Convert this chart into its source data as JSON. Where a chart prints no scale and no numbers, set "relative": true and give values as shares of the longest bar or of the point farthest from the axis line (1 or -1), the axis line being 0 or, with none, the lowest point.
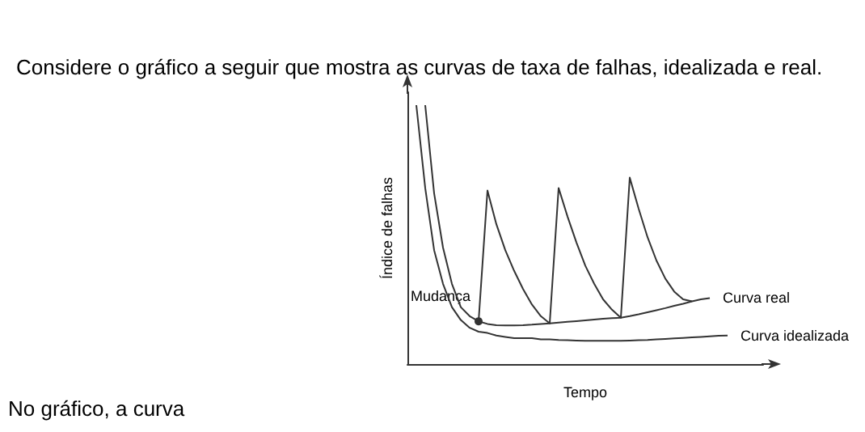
{
  "chart_data": {
    "type": "line",
    "relative": true,
    "title": "Considere o gráfico a seguir que mostra as curvas de taxa de falhas, idealizada e real.",
    "xlabel": "Tempo",
    "ylabel": "Índice de falhas",
    "grid": false,
    "marker": "none",
    "line_style": "solid",
    "categories": [
      null,
      null,
      null,
      null,
      null,
      null,
      null,
      null,
      null,
      null,
      null,
      null,
      null,
      null,
      null,
      null,
      null,
      null,
      null,
      null,
      null,
      null,
      null,
      null,
      null,
      null,
      null,
      null,
      null,
      null,
      null,
      null,
      null,
      null,
      null,
      null,
      null,
      null,
      null,
      null,
      null
    ],
    "series": [
      {
        "name": "Curva real",
        "color": "#333333",
        "values": [
          null,
          null,
          1,
          0.66,
          0.45,
          0.31,
          0.22,
          0.185,
          0.165,
          0.155,
          0.15,
          0.149,
          0.149,
          0.15,
          0.152,
          0.155,
          0.157,
          0.16,
          0.163,
          0.166,
          0.169,
          0.172,
          0.175,
          0.177,
          0.179,
          0.185,
          0.192,
          0.2,
          0.208,
          0.216,
          0.225,
          0.233,
          0.242,
          0.25,
          0.255,
          null,
          null,
          null,
          null,
          null,
          null
        ]
      },
      {
        "color": "#333333",
        "values": [
          null,
          null,
          null,
          null,
          null,
          null,
          null,
          null,
          0.165,
          0.67,
          0.54,
          0.44,
          0.36,
          0.29,
          0.23,
          0.185,
          0.157,
          0.68,
          0.57,
          0.47,
          0.38,
          0.31,
          0.25,
          0.21,
          0.179,
          0.72,
          0.6,
          0.49,
          0.4,
          0.33,
          0.28,
          0.25,
          0.242,
          null,
          null,
          null,
          null,
          null,
          null,
          null,
          null
        ]
      },
      {
        "name": "Curva idealizada",
        "color": "#333333",
        "values": [
          null,
          1,
          0.68,
          0.44,
          0.31,
          0.22,
          0.17,
          0.14,
          0.125,
          0.12,
          0.11,
          0.105,
          0.1,
          0.1,
          0.1,
          0.095,
          0.095,
          0.093,
          0.092,
          0.091,
          0.09,
          0.09,
          0.09,
          0.09,
          0.09,
          0.091,
          0.092,
          0.093,
          0.095,
          0.097,
          0.099,
          0.101,
          0.103,
          0.105,
          0.107,
          0.109,
          0.11,
          null,
          null,
          null,
          null
        ]
      }
    ],
    "annotations": [
      "Mudança",
      "No gráfico, a curva"
    ]
  }
}
